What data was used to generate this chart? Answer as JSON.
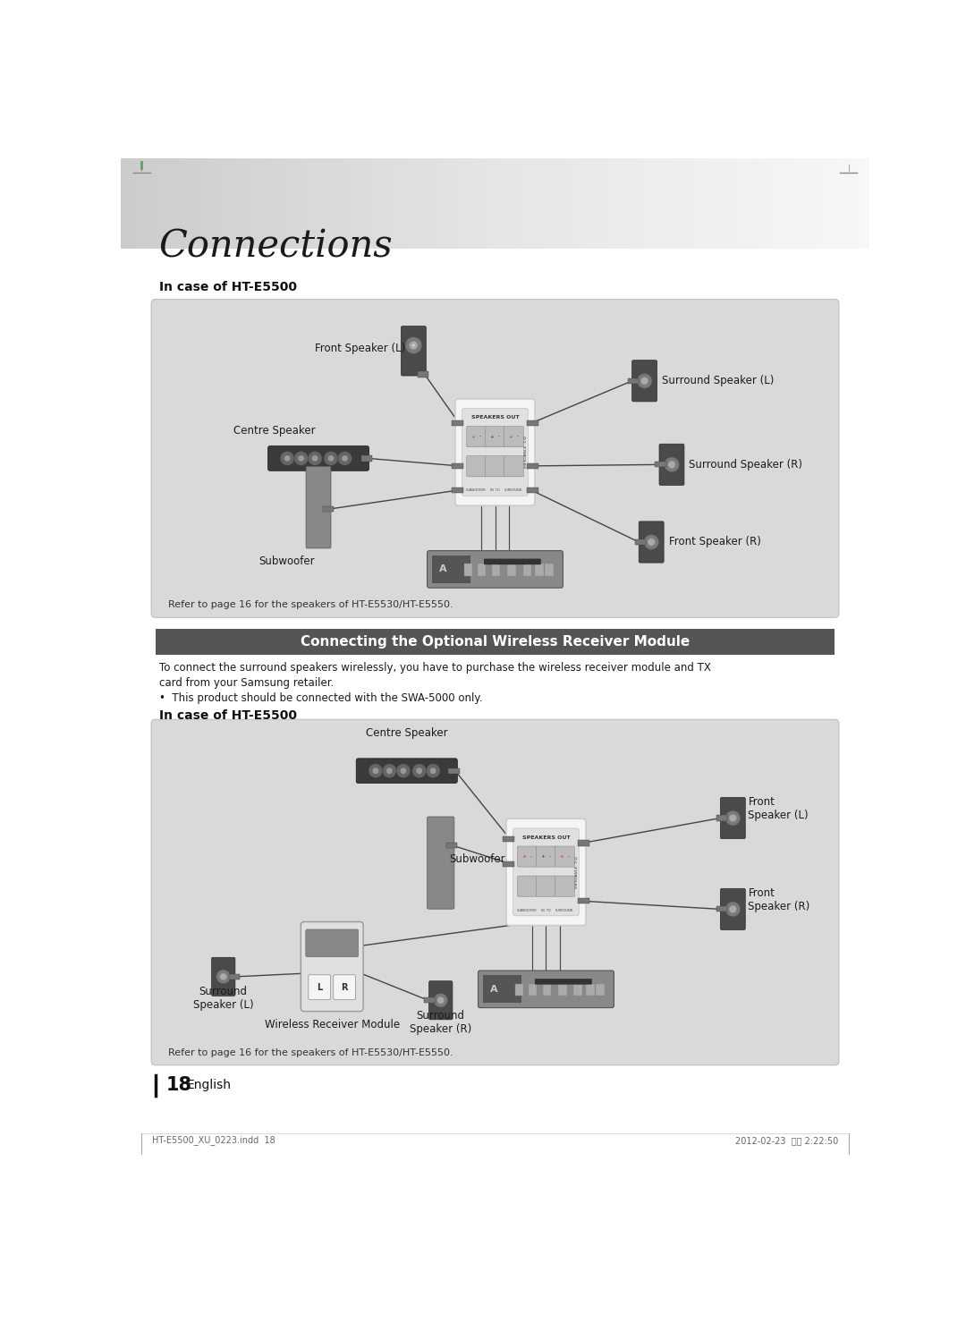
{
  "page_bg": "#ffffff",
  "title_text": "Connections",
  "title_fontsize": 30,
  "section1_label": "In case of HT-E5500",
  "section2_label": "In case of HT-E5500",
  "section_bar_text": "Connecting the Optional Wireless Receiver Module",
  "body_text1": "To connect the surround speakers wirelessly, you have to purchase the wireless receiver module and TX",
  "body_text2": "card from your Samsung retailer.",
  "body_text3": "•  This product should be connected with the SWA-5000 only.",
  "footer_text": "Refer to page 16 for the speakers of HT-E5530/HT-E5550.",
  "page_num_text": "18",
  "page_eng": "English",
  "bottom_left": "HT-E5500_XU_0223.indd  18",
  "bottom_right": "2012-02-23  오후 2:22:50",
  "diag_bg": "#d9d9d9",
  "diag_edge": "#c0c0c0",
  "wire_color": "#444444",
  "speaker_dark": "#4a4a4a",
  "speaker_mid": "#6a6a6a",
  "speaker_cone": "#7a7a7a",
  "speaker_inner": "#999999",
  "center_bar_color": "#3a3a3a",
  "subwoofer_color": "#888888",
  "connector_bg": "#f2f2f2",
  "connector_edge": "#aaaaaa",
  "terminal_fill": "#cccccc",
  "main_unit_color": "#777777",
  "wrm_color": "#cccccc",
  "label_fs": 8.5,
  "body_fs": 8.5
}
